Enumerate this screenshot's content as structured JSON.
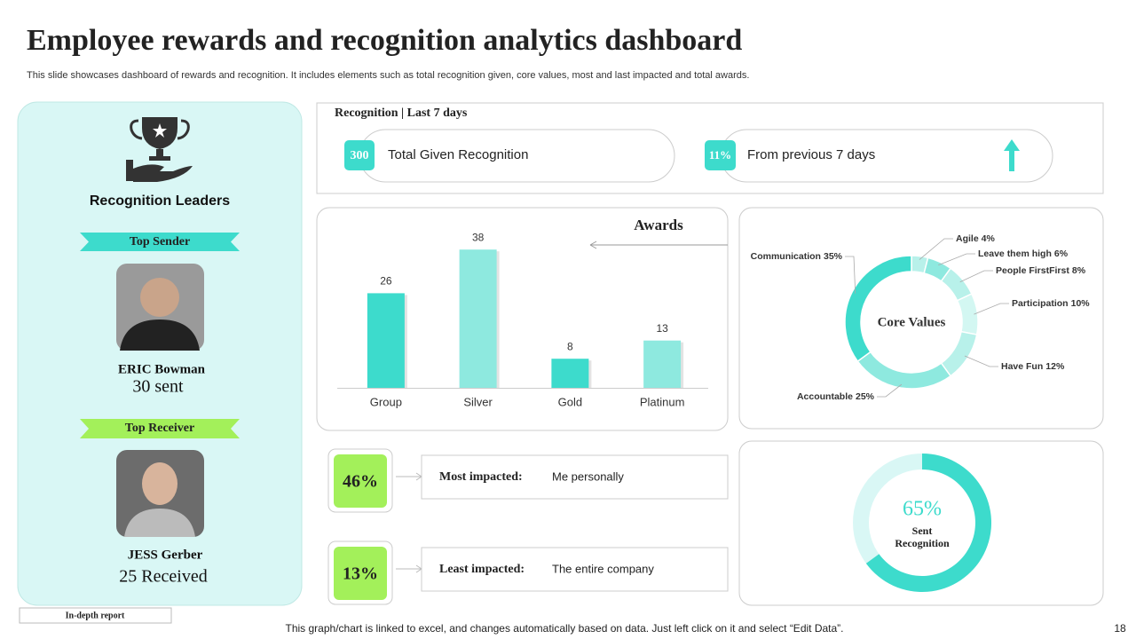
{
  "title": "Employee rewards and recognition analytics dashboard",
  "subtitle": "This slide showcases dashboard of rewards and recognition. It includes elements such as total recognition given, core values, most and last impacted and total awards.",
  "leaders": {
    "title": "Recognition Leaders",
    "sender": {
      "badge": "Top Sender",
      "name": "ERIC Bowman",
      "count": "30 sent"
    },
    "receiver": {
      "badge": "Top Receiver",
      "name": "JESS Gerber",
      "count": "25 Received"
    }
  },
  "recognition": {
    "title": "Recognition | Last 7 days",
    "total": {
      "value": "300",
      "label": "Total Given Recognition"
    },
    "change": {
      "value": "11%",
      "label": "From previous 7 days"
    }
  },
  "impact": [
    {
      "value": "46%",
      "label": "Most impacted:",
      "text": "Me personally"
    },
    {
      "value": "13%",
      "label": "Least impacted:",
      "text": "The entire company"
    }
  ],
  "footer": {
    "report": "In-depth report",
    "note": "This graph/chart is linked to excel,  and changes automatically based on data. Just left click on it and select “Edit Data”.",
    "page": "18"
  },
  "chart_data": [
    {
      "type": "bar",
      "title": "Awards",
      "categories": [
        "Group",
        "Silver",
        "Gold",
        "Platinum"
      ],
      "values": [
        26,
        38,
        8,
        13
      ],
      "colors": [
        "#3ddbcc",
        "#8ee9df",
        "#3ddbcc",
        "#8ee9df"
      ],
      "ylim": [
        0,
        40
      ]
    },
    {
      "type": "pie",
      "title": "Core Values",
      "categories": [
        "Agile",
        "Leave them high",
        "People FirstFirst",
        "Participation",
        "Have Fun",
        "Accountable",
        "Communication"
      ],
      "values": [
        4,
        6,
        8,
        10,
        12,
        25,
        35
      ],
      "value_labels": [
        "4%",
        "6%",
        "8%",
        "10%",
        "12%",
        "25%",
        "35%"
      ],
      "colors": [
        "#b8f1ea",
        "#8ee9df",
        "#b8f1ea",
        "#d3f7f2",
        "#b8f1ea",
        "#8ee9df",
        "#3ddbcc"
      ]
    },
    {
      "type": "gauge",
      "label": "Sent Recognition",
      "value": 65,
      "value_label": "65%",
      "ylim": [
        0,
        100
      ],
      "color": "#3ddbcc",
      "track_color": "#d9f7f5"
    }
  ]
}
